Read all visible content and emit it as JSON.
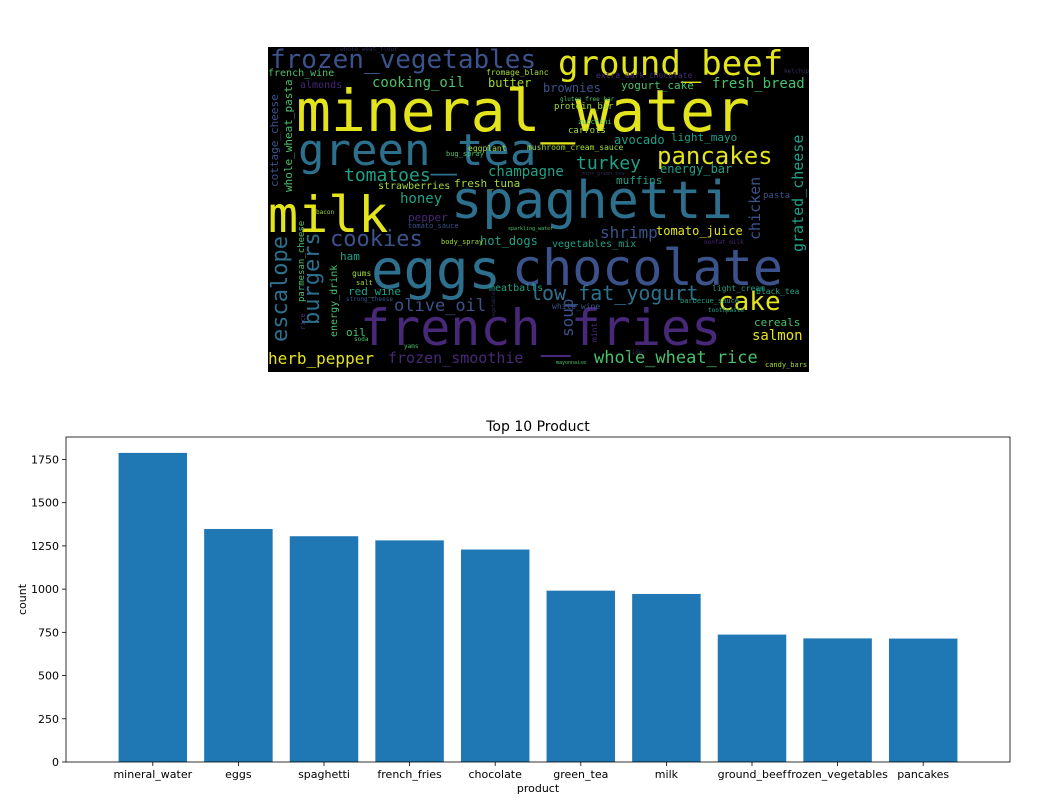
{
  "wordcloud": {
    "background": "#000000",
    "palette": {
      "yellow": "#e4e41d",
      "lime": "#a2da37",
      "green": "#4ac16d",
      "teal": "#1fa187",
      "blue": "#2d708e",
      "slate": "#3b528b",
      "purple": "#482878",
      "faint": "#2c2c54"
    },
    "words": [
      {
        "text": "mineral_water",
        "color": "yellow"
      },
      {
        "text": "green_tea",
        "color": "blue"
      },
      {
        "text": "spaghetti",
        "color": "blue"
      },
      {
        "text": "eggs",
        "color": "blue"
      },
      {
        "text": "chocolate",
        "color": "slate"
      },
      {
        "text": "french_fries",
        "color": "purple"
      },
      {
        "text": "milk",
        "color": "yellow"
      },
      {
        "text": "ground_beef",
        "color": "yellow"
      },
      {
        "text": "frozen_vegetables",
        "color": "slate"
      },
      {
        "text": "pancakes",
        "color": "yellow"
      },
      {
        "text": "cake",
        "color": "yellow"
      },
      {
        "text": "low_fat_yogurt",
        "color": "blue"
      },
      {
        "text": "escalope",
        "color": "blue"
      },
      {
        "text": "burgers",
        "color": "blue"
      },
      {
        "text": "cookies",
        "color": "slate"
      },
      {
        "text": "tomatoes",
        "color": "teal"
      },
      {
        "text": "turkey",
        "color": "teal"
      },
      {
        "text": "olive_oil",
        "color": "slate"
      },
      {
        "text": "whole_wheat_rice",
        "color": "green"
      },
      {
        "text": "frozen_smoothie",
        "color": "purple"
      },
      {
        "text": "herb_pepper",
        "color": "yellow"
      },
      {
        "text": "shrimp",
        "color": "slate"
      },
      {
        "text": "soup",
        "color": "slate"
      },
      {
        "text": "salmon",
        "color": "yellow"
      },
      {
        "text": "champagne",
        "color": "teal"
      },
      {
        "text": "grated_cheese",
        "color": "teal"
      },
      {
        "text": "chicken",
        "color": "slate"
      },
      {
        "text": "cooking_oil",
        "color": "green"
      },
      {
        "text": "fresh_bread",
        "color": "green"
      },
      {
        "text": "honey",
        "color": "teal"
      },
      {
        "text": "tomato_juice",
        "color": "yellow"
      },
      {
        "text": "cereals",
        "color": "green"
      },
      {
        "text": "brownies",
        "color": "slate"
      },
      {
        "text": "avocado",
        "color": "teal"
      },
      {
        "text": "butter",
        "color": "lime"
      },
      {
        "text": "cottage_cheese",
        "color": "slate"
      },
      {
        "text": "whole_wheat_pasta",
        "color": "green"
      },
      {
        "text": "energy_bar",
        "color": "teal"
      },
      {
        "text": "muffins",
        "color": "teal"
      },
      {
        "text": "hot_dogs",
        "color": "teal"
      },
      {
        "text": "meatballs",
        "color": "teal"
      },
      {
        "text": "yogurt_cake",
        "color": "green"
      },
      {
        "text": "light_mayo",
        "color": "teal"
      },
      {
        "text": "fresh_tuna",
        "color": "lime"
      },
      {
        "text": "strawberries",
        "color": "lime"
      },
      {
        "text": "pepper",
        "color": "purple"
      },
      {
        "text": "ham",
        "color": "teal"
      },
      {
        "text": "red_wine",
        "color": "teal"
      },
      {
        "text": "vegetables_mix",
        "color": "teal"
      },
      {
        "text": "energy_drink",
        "color": "green"
      },
      {
        "text": "parmesan_cheese",
        "color": "green"
      },
      {
        "text": "oil",
        "color": "green"
      },
      {
        "text": "almonds",
        "color": "purple"
      },
      {
        "text": "french_wine",
        "color": "green"
      },
      {
        "text": "eggplant",
        "color": "lime"
      },
      {
        "text": "carrots",
        "color": "lime"
      },
      {
        "text": "protein_bar",
        "color": "lime"
      },
      {
        "text": "pasta",
        "color": "slate"
      },
      {
        "text": "black_tea",
        "color": "teal"
      },
      {
        "text": "light_cream",
        "color": "teal"
      },
      {
        "text": "mushroom_cream_sauce",
        "color": "lime"
      },
      {
        "text": "fromage_blanc",
        "color": "lime"
      },
      {
        "text": "extra_dark_chocolate",
        "color": "purple"
      },
      {
        "text": "gums",
        "color": "lime"
      },
      {
        "text": "salt",
        "color": "lime"
      },
      {
        "text": "body_spray",
        "color": "lime"
      },
      {
        "text": "tomato_sauce",
        "color": "slate"
      },
      {
        "text": "white_wine",
        "color": "slate"
      },
      {
        "text": "mint",
        "color": "purple"
      },
      {
        "text": "candy_bars",
        "color": "lime"
      },
      {
        "text": "barbecue_sauce",
        "color": "teal"
      },
      {
        "text": "zucchini",
        "color": "green"
      },
      {
        "text": "bug_spray",
        "color": "green"
      },
      {
        "text": "gluten_free_bar",
        "color": "green"
      },
      {
        "text": "nonfat_milk",
        "color": "purple"
      },
      {
        "text": "whole_weat_flour",
        "color": "faint"
      },
      {
        "text": "bacon",
        "color": "lime"
      },
      {
        "text": "mayonnaise",
        "color": "green"
      },
      {
        "text": "sparkling_water",
        "color": "green"
      },
      {
        "text": "toothpaste",
        "color": "teal"
      },
      {
        "text": "rice",
        "color": "purple"
      },
      {
        "text": "soda",
        "color": "green"
      },
      {
        "text": "yams",
        "color": "green"
      },
      {
        "text": "strong_cheese",
        "color": "slate"
      },
      {
        "text": "cider",
        "color": "faint"
      },
      {
        "text": "mint_green_tea",
        "color": "faint"
      },
      {
        "text": "ketchup",
        "color": "faint"
      },
      {
        "text": "vegetables",
        "color": "faint"
      }
    ]
  },
  "chart_data": {
    "type": "bar",
    "title": "Top 10 Product",
    "xlabel": "product",
    "ylabel": "count",
    "categories": [
      "mineral_water",
      "eggs",
      "spaghetti",
      "french_fries",
      "chocolate",
      "green_tea",
      "milk",
      "ground_beef",
      "frozen_vegetables",
      "pancakes"
    ],
    "values": [
      1788,
      1348,
      1306,
      1282,
      1229,
      991,
      972,
      737,
      715,
      714
    ],
    "ylim": [
      0,
      1880
    ],
    "yticks": [
      0,
      250,
      500,
      750,
      1000,
      1250,
      1500,
      1750
    ],
    "bar_color": "#1f77b4",
    "grid": false
  }
}
